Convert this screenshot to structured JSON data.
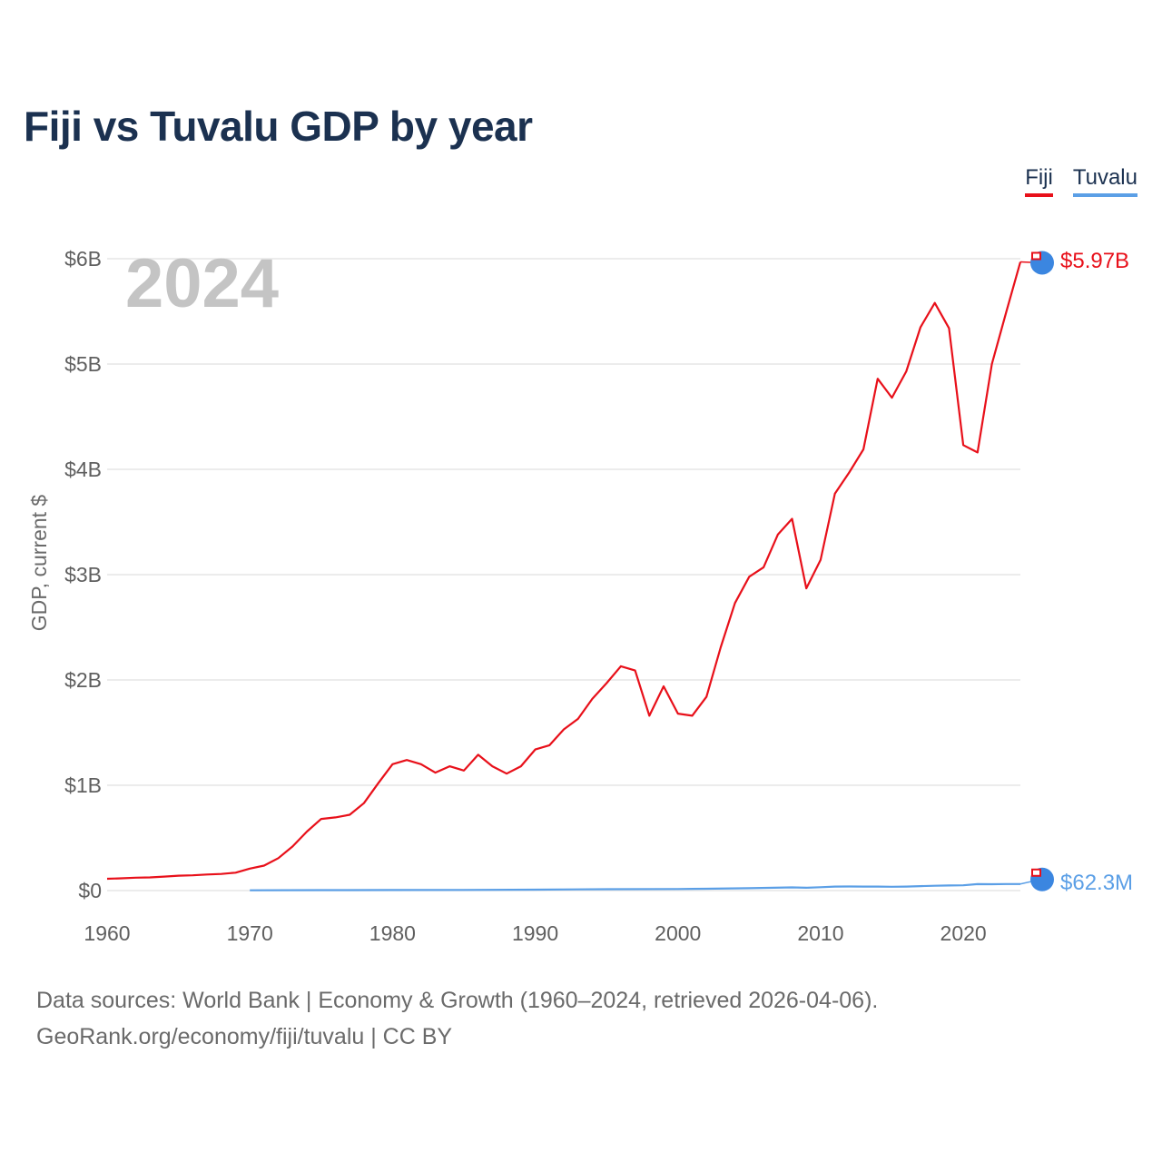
{
  "title": "Fiji vs Tuvalu GDP by year",
  "legend": [
    {
      "name": "Fiji",
      "color": "#e8101a"
    },
    {
      "name": "Tuvalu",
      "color": "#5b9fe6"
    }
  ],
  "year_label": "2024",
  "end_labels": {
    "fiji": "$5.97B",
    "tuvalu": "$62.3M"
  },
  "source": {
    "line1": "Data sources: World Bank | Economy & Growth (1960–2024, retrieved 2026-04-06).",
    "line2": "GeoRank.org/economy/fiji/tuvalu | CC BY"
  },
  "chart_data": {
    "type": "line",
    "title": "Fiji vs Tuvalu GDP by year",
    "xlabel": "",
    "ylabel": "GDP, current $",
    "xlim": [
      1960,
      2024
    ],
    "ylim": [
      0,
      6
    ],
    "y_unit": "billions USD",
    "x_ticks": [
      1960,
      1970,
      1980,
      1990,
      2000,
      2010,
      2020
    ],
    "y_ticks": [
      {
        "value": 0,
        "label": "$0"
      },
      {
        "value": 1,
        "label": "$1B"
      },
      {
        "value": 2,
        "label": "$2B"
      },
      {
        "value": 3,
        "label": "$3B"
      },
      {
        "value": 4,
        "label": "$4B"
      },
      {
        "value": 5,
        "label": "$5B"
      },
      {
        "value": 6,
        "label": "$6B"
      }
    ],
    "grid": true,
    "legend_position": "top-right",
    "series": [
      {
        "name": "Fiji",
        "color": "#e8101a",
        "x": [
          1960,
          1961,
          1962,
          1963,
          1964,
          1965,
          1966,
          1967,
          1968,
          1969,
          1970,
          1971,
          1972,
          1973,
          1974,
          1975,
          1976,
          1977,
          1978,
          1979,
          1980,
          1981,
          1982,
          1983,
          1984,
          1985,
          1986,
          1987,
          1988,
          1989,
          1990,
          1991,
          1992,
          1993,
          1994,
          1995,
          1996,
          1997,
          1998,
          1999,
          2000,
          2001,
          2002,
          2003,
          2004,
          2005,
          2006,
          2007,
          2008,
          2009,
          2010,
          2011,
          2012,
          2013,
          2014,
          2015,
          2016,
          2017,
          2018,
          2019,
          2020,
          2021,
          2022,
          2023,
          2024
        ],
        "values": [
          0.112,
          0.116,
          0.122,
          0.125,
          0.133,
          0.141,
          0.145,
          0.153,
          0.158,
          0.17,
          0.209,
          0.237,
          0.308,
          0.419,
          0.56,
          0.68,
          0.695,
          0.72,
          0.83,
          1.02,
          1.2,
          1.24,
          1.2,
          1.12,
          1.18,
          1.14,
          1.29,
          1.18,
          1.11,
          1.18,
          1.34,
          1.38,
          1.53,
          1.63,
          1.82,
          1.97,
          2.13,
          2.09,
          1.66,
          1.94,
          1.68,
          1.66,
          1.84,
          2.31,
          2.73,
          2.98,
          3.07,
          3.38,
          3.53,
          2.87,
          3.14,
          3.77,
          3.97,
          4.19,
          4.86,
          4.68,
          4.93,
          5.35,
          5.58,
          5.34,
          4.23,
          4.16,
          5.0,
          5.49,
          5.97
        ]
      },
      {
        "name": "Tuvalu",
        "color": "#5b9fe6",
        "x": [
          1970,
          1975,
          1980,
          1985,
          1990,
          1995,
          2000,
          2002,
          2005,
          2008,
          2009,
          2010,
          2011,
          2012,
          2013,
          2014,
          2015,
          2016,
          2017,
          2018,
          2019,
          2020,
          2021,
          2022,
          2023,
          2024
        ],
        "values": [
          0.003,
          0.004,
          0.005,
          0.006,
          0.009,
          0.013,
          0.015,
          0.017,
          0.022,
          0.03,
          0.027,
          0.032,
          0.038,
          0.039,
          0.038,
          0.038,
          0.036,
          0.038,
          0.042,
          0.046,
          0.048,
          0.05,
          0.061,
          0.06,
          0.062,
          0.0623
        ]
      }
    ]
  }
}
